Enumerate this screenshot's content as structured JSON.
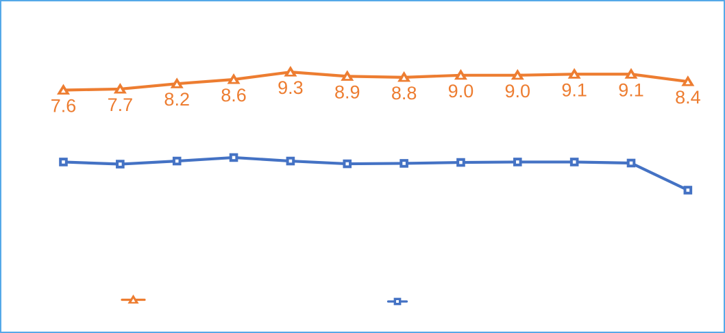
{
  "frame": {
    "border_color": "#55A8E8",
    "background_color": "#FFFFFF"
  },
  "chart_data": {
    "type": "line",
    "title": "",
    "x_axis": {
      "visible": false,
      "tick_labels": []
    },
    "y_axis": {
      "visible": false,
      "tick_labels": []
    },
    "gridlines": false,
    "n_points": 12,
    "series": [
      {
        "name": "orange-triangle-series",
        "color": "#ED7D31",
        "marker": "triangle",
        "values": [
          7.6,
          7.7,
          8.2,
          8.6,
          9.3,
          8.9,
          8.8,
          9.0,
          9.0,
          9.1,
          9.1,
          8.4
        ],
        "data_labels": [
          "7.6",
          "7.7",
          "8.2",
          "8.6",
          "9.3",
          "8.9",
          "8.8",
          "9.0",
          "9.0",
          "9.1",
          "9.1",
          "8.4"
        ],
        "data_labels_visible": true
      },
      {
        "name": "blue-square-series",
        "color": "#4472C4",
        "marker": "square",
        "values": [
          0.83,
          0.63,
          0.92,
          1.25,
          0.92,
          0.66,
          0.7,
          0.79,
          0.83,
          0.83,
          0.73,
          -1.82
        ],
        "data_labels": [],
        "data_labels_visible": false,
        "note": "series has no visible labels or axis; values estimated from marker pixel positions using the orange series' value scale"
      }
    ],
    "legend": {
      "position": "bottom",
      "entries": [
        {
          "marker": "triangle",
          "color": "#ED7D31",
          "label": ""
        },
        {
          "marker": "square",
          "color": "#4472C4",
          "label": ""
        }
      ]
    }
  }
}
